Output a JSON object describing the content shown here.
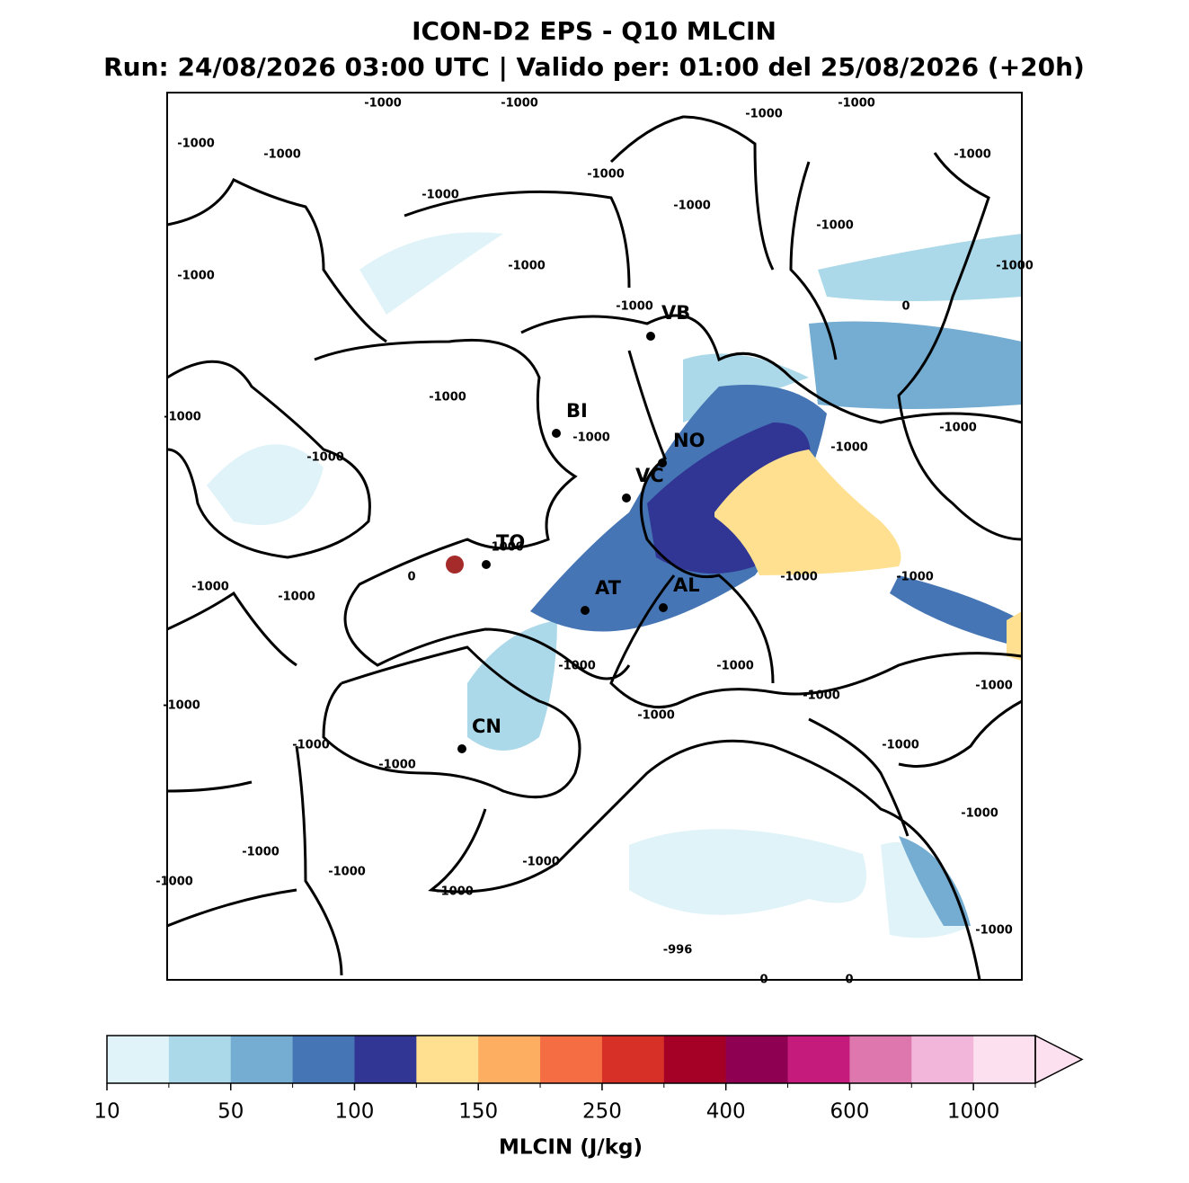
{
  "title": "ICON-D2 EPS - Q10 MLCIN",
  "subtitle": "Run: 24/08/2026 03:00 UTC | Valido per: 01:00 del 25/08/2026 (+20h)",
  "cities": [
    "VB",
    "BI",
    "NO",
    "VC",
    "TO",
    "AT",
    "AL",
    "CN"
  ],
  "contour_labels": [
    -1000,
    -1000,
    -1000,
    -1000,
    -1000,
    -1000,
    -1000,
    -1000,
    -1000,
    -1000,
    -1000,
    -1000,
    -1000,
    -1000,
    -1000,
    0,
    -1000,
    -1000,
    -1000,
    -1000,
    -1000,
    -1000,
    -1000,
    0,
    -1000,
    -1000,
    -1000,
    -1000,
    -1000,
    -1000,
    -1000,
    -1000,
    -1000,
    -1000,
    -1000,
    -1000,
    -1000,
    -1000,
    -1000,
    -1000,
    -1000,
    -1000,
    -1000,
    -1000,
    -996,
    0,
    0
  ],
  "colorbar": {
    "label": "MLCIN (J/kg)",
    "colors": [
      "#e0f3f8",
      "#abd9e9",
      "#74add1",
      "#4575b4",
      "#313695",
      "#fee090",
      "#fdae61",
      "#f46d43",
      "#d73027",
      "#a50026",
      "#8e0152",
      "#c51b7d",
      "#de77ae",
      "#f1b6da",
      "#fde0ef"
    ],
    "ticks": [
      10,
      50,
      100,
      150,
      250,
      400,
      600,
      1000
    ]
  }
}
